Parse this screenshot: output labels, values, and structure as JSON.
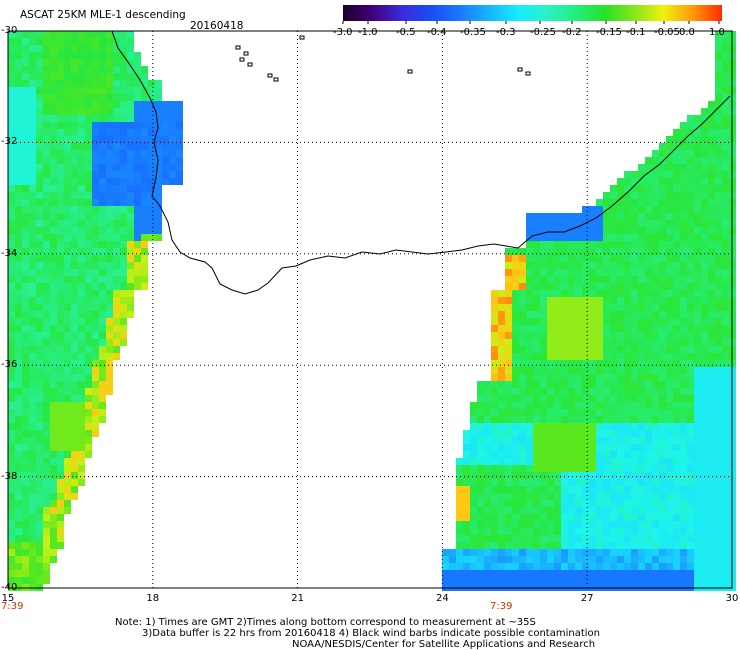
{
  "title": {
    "product": "ASCAT 25KM MLE-1 descending",
    "date": "20160418"
  },
  "colorbar": {
    "labels": [
      "-3.0",
      "-1.0",
      "-0.5",
      "-0.4",
      "-0.35",
      "-0.3",
      "-0.25",
      "-0.2",
      "-0.15",
      "-0.1",
      "-0.05",
      "0.0",
      "1.0"
    ],
    "colors": [
      "#1a0026",
      "#40007a",
      "#3a2ad8",
      "#1a4cf5",
      "#1878ff",
      "#19b4ff",
      "#16ecff",
      "#2cf0c8",
      "#22f07a",
      "#26e226",
      "#88e61c",
      "#f0f00e",
      "#ff9a0a",
      "#ff2a00"
    ]
  },
  "axes": {
    "lon_ticks": [
      "15",
      "18",
      "21",
      "24",
      "27",
      "30"
    ],
    "lat_ticks": [
      "-30",
      "-32",
      "-34",
      "-36",
      "-38",
      "-40"
    ]
  },
  "times": [
    "7:39",
    "7:39"
  ],
  "notes": [
    "Note: 1) Times are GMT 2)Times along bottom correspond to measurement at ~35S",
    "3)Data buffer is 22 hrs from 20160418 4) Black wind barbs indicate possible contamination",
    "NOAA/NESDIS/Center for Satellite Applications and Research"
  ]
}
